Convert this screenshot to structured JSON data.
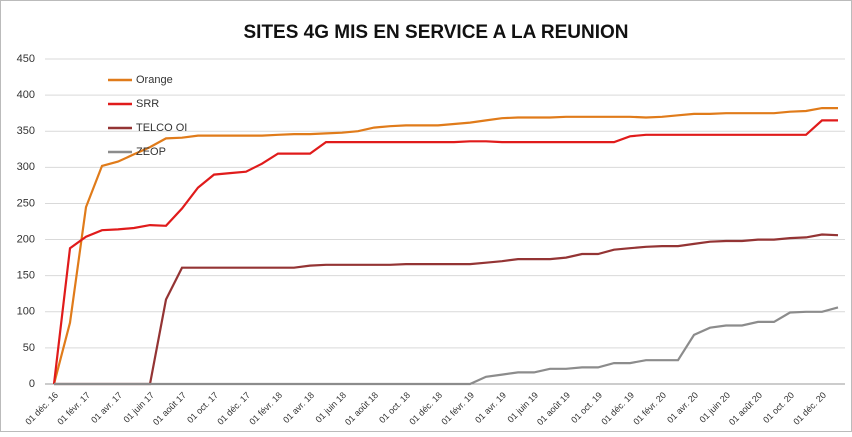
{
  "chart_data": {
    "type": "line",
    "title": "SITES 4G MIS EN SERVICE  A LA REUNION",
    "categories": [
      "01 déc. 16",
      null,
      "01 févr. 17",
      null,
      "01 avr. 17",
      null,
      "01 juin 17",
      null,
      "01 août 17",
      null,
      "01 oct. 17",
      null,
      "01 déc. 17",
      null,
      "01 févr. 18",
      null,
      "01 avr. 18",
      null,
      "01 juin 18",
      null,
      "01 août 18",
      null,
      "01 oct. 18",
      null,
      "01 déc. 18",
      null,
      "01 févr. 19",
      null,
      "01 avr. 19",
      null,
      "01 juin 19",
      null,
      "01 août 19",
      null,
      "01 oct. 19",
      null,
      "01 déc. 19",
      null,
      "01 févr. 20",
      null,
      "01 avr. 20",
      null,
      "01 juin 20",
      null,
      "01 août 20",
      null,
      "01 oct. 20",
      null,
      "01 déc. 20",
      null
    ],
    "series": [
      {
        "name": "Orange",
        "color": "#e07b1a",
        "values": [
          0,
          85,
          245,
          302,
          308,
          318,
          328,
          340,
          341,
          344,
          344,
          344,
          344,
          344,
          345,
          346,
          346,
          347,
          348,
          350,
          355,
          357,
          358,
          358,
          358,
          360,
          362,
          365,
          368,
          369,
          369,
          369,
          370,
          370,
          370,
          370,
          370,
          369,
          370,
          372,
          374,
          374,
          375,
          375,
          375,
          375,
          377,
          378,
          382,
          382
        ]
      },
      {
        "name": "SRR",
        "color": "#e01b1b",
        "values": [
          0,
          188,
          204,
          213,
          214,
          216,
          220,
          219,
          243,
          272,
          290,
          292,
          294,
          305,
          319,
          319,
          319,
          335,
          335,
          335,
          335,
          335,
          335,
          335,
          335,
          335,
          336,
          336,
          335,
          335,
          335,
          335,
          335,
          335,
          335,
          335,
          343,
          345,
          345,
          345,
          345,
          345,
          345,
          345,
          345,
          345,
          345,
          345,
          365,
          365
        ]
      },
      {
        "name": "TELCO OI",
        "color": "#943434",
        "values": [
          0,
          0,
          0,
          0,
          0,
          0,
          0,
          117,
          161,
          161,
          161,
          161,
          161,
          161,
          161,
          161,
          164,
          165,
          165,
          165,
          165,
          165,
          166,
          166,
          166,
          166,
          166,
          168,
          170,
          173,
          173,
          173,
          175,
          180,
          180,
          186,
          188,
          190,
          191,
          191,
          194,
          197,
          198,
          198,
          200,
          200,
          202,
          203,
          207,
          206
        ]
      },
      {
        "name": "ZEOP",
        "color": "#8c8c8c",
        "values": [
          0,
          0,
          0,
          0,
          0,
          0,
          0,
          0,
          0,
          0,
          0,
          0,
          0,
          0,
          0,
          0,
          0,
          0,
          0,
          0,
          0,
          0,
          0,
          0,
          0,
          0,
          0,
          10,
          13,
          16,
          16,
          21,
          21,
          23,
          23,
          29,
          29,
          33,
          33,
          33,
          68,
          78,
          81,
          81,
          86,
          86,
          99,
          100,
          100,
          106
        ]
      }
    ],
    "ylim": [
      0,
      450
    ],
    "yticks": [
      0,
      50,
      100,
      150,
      200,
      250,
      300,
      350,
      400,
      450
    ],
    "grid": true,
    "legend": "top-left"
  }
}
